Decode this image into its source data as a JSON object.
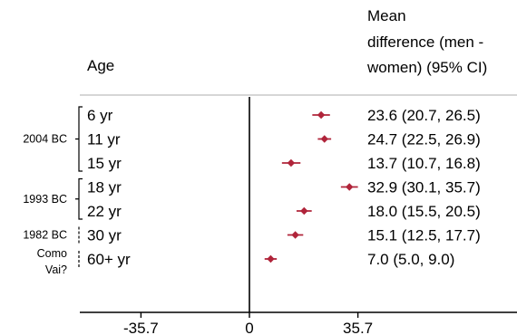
{
  "chart_data": {
    "type": "forest",
    "header": {
      "age_label": "Age",
      "estimate_label_lines": [
        "Mean",
        "difference (men -",
        "women) (95% CI)"
      ]
    },
    "groups": [
      {
        "label_lines": [
          "2004 BC"
        ],
        "rows": [
          0,
          1,
          2
        ]
      },
      {
        "label_lines": [
          "1993 BC"
        ],
        "rows": [
          3,
          4
        ]
      },
      {
        "label_lines": [
          "1982 BC"
        ],
        "rows": [
          5
        ]
      },
      {
        "label_lines": [
          "Como",
          "Vai?"
        ],
        "rows": [
          6
        ]
      }
    ],
    "rows": [
      {
        "age": "6 yr",
        "mean": 23.6,
        "lo": 20.7,
        "hi": 26.5,
        "text": "23.6 (20.7, 26.5)"
      },
      {
        "age": "11 yr",
        "mean": 24.7,
        "lo": 22.5,
        "hi": 26.9,
        "text": "24.7 (22.5, 26.9)"
      },
      {
        "age": "15 yr",
        "mean": 13.7,
        "lo": 10.7,
        "hi": 16.8,
        "text": "13.7 (10.7, 16.8)"
      },
      {
        "age": "18 yr",
        "mean": 32.9,
        "lo": 30.1,
        "hi": 35.7,
        "text": "32.9 (30.1, 35.7)"
      },
      {
        "age": "22 yr",
        "mean": 18.0,
        "lo": 15.5,
        "hi": 20.5,
        "text": "18.0 (15.5, 20.5)"
      },
      {
        "age": "30 yr",
        "mean": 15.1,
        "lo": 12.5,
        "hi": 17.7,
        "text": "15.1 (12.5, 17.7)"
      },
      {
        "age": "60+ yr",
        "mean": 7.0,
        "lo": 5.0,
        "hi": 9.0,
        "text": "7.0 (5.0, 9.0)"
      }
    ],
    "x_ticks": [
      -35.7,
      0,
      35.7
    ],
    "x_tick_labels": [
      "-35.7",
      "0",
      "35.7"
    ],
    "xlim": [
      -71.4,
      71.4
    ],
    "reference_line": 0,
    "marker_color": "#b0243a",
    "line_color": "#000000",
    "header_rule_color": "#c8c8c8"
  }
}
